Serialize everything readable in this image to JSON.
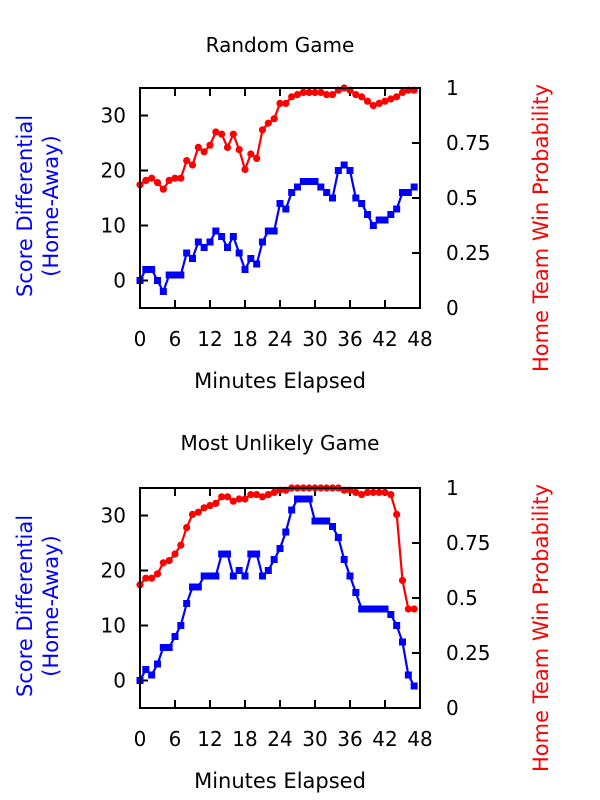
{
  "colors": {
    "score": "#0000ff",
    "prob": "#ff0000",
    "axis": "#000000"
  },
  "chart_data": [
    {
      "type": "line",
      "title": "Random Game",
      "xlabel": "Minutes Elapsed",
      "ylabel": [
        "Score Differential",
        "(Home-Away)"
      ],
      "y2label": "Home Team Win Probability",
      "xlim": [
        0,
        48
      ],
      "ylim": [
        -5,
        35
      ],
      "y2lim": [
        0,
        1
      ],
      "xticks": [
        "0",
        "6",
        "12",
        "18",
        "24",
        "30",
        "36",
        "42",
        "48"
      ],
      "yticks": [
        "0",
        "10",
        "20",
        "30"
      ],
      "y2ticks": [
        "0",
        "0.25",
        "0.5",
        "0.75",
        "1"
      ],
      "series": [
        {
          "axis": "left",
          "color": "#0000ff",
          "marker": "square",
          "x": [
            0,
            1,
            2,
            3,
            4,
            5,
            6,
            7,
            8,
            9,
            10,
            11,
            12,
            13,
            14,
            15,
            16,
            17,
            18,
            19,
            20,
            21,
            22,
            23,
            24,
            25,
            26,
            27,
            28,
            29,
            30,
            31,
            32,
            33,
            34,
            35,
            36,
            37,
            38,
            39,
            40,
            41,
            42,
            43,
            44,
            45,
            46,
            47
          ],
          "y": [
            0,
            2,
            2,
            0,
            -2,
            1,
            1,
            1,
            5,
            4,
            7,
            6,
            7,
            9,
            8,
            6,
            8,
            5,
            2,
            4,
            3,
            7,
            9,
            9,
            14,
            13,
            16,
            17,
            18,
            18,
            18,
            17,
            16,
            15,
            20,
            21,
            20,
            15,
            14,
            12,
            10,
            11,
            11,
            12,
            13,
            16,
            16,
            17
          ]
        },
        {
          "axis": "right",
          "color": "#ff0000",
          "marker": "circle",
          "x": [
            0,
            1,
            2,
            3,
            4,
            5,
            6,
            7,
            8,
            9,
            10,
            11,
            12,
            13,
            14,
            15,
            16,
            17,
            18,
            19,
            20,
            21,
            22,
            23,
            24,
            25,
            26,
            27,
            28,
            29,
            30,
            31,
            32,
            33,
            34,
            35,
            36,
            37,
            38,
            39,
            40,
            41,
            42,
            43,
            44,
            45,
            46,
            47
          ],
          "y": [
            0.56,
            0.58,
            0.59,
            0.57,
            0.54,
            0.58,
            0.59,
            0.59,
            0.67,
            0.65,
            0.73,
            0.71,
            0.74,
            0.8,
            0.79,
            0.73,
            0.79,
            0.72,
            0.63,
            0.7,
            0.68,
            0.81,
            0.84,
            0.86,
            0.93,
            0.93,
            0.96,
            0.97,
            0.98,
            0.98,
            0.98,
            0.98,
            0.97,
            0.97,
            0.99,
            1.0,
            0.99,
            0.97,
            0.96,
            0.94,
            0.92,
            0.93,
            0.94,
            0.95,
            0.96,
            0.98,
            0.99,
            0.99
          ]
        }
      ]
    },
    {
      "type": "line",
      "title": "Most Unlikely Game",
      "xlabel": "Minutes Elapsed",
      "ylabel": [
        "Score Differential",
        "(Home-Away)"
      ],
      "y2label": "Home Team Win Probability",
      "xlim": [
        0,
        48
      ],
      "ylim": [
        -5,
        35
      ],
      "y2lim": [
        0,
        1
      ],
      "xticks": [
        "0",
        "6",
        "12",
        "18",
        "24",
        "30",
        "36",
        "42",
        "48"
      ],
      "yticks": [
        "0",
        "10",
        "20",
        "30"
      ],
      "y2ticks": [
        "0",
        "0.25",
        "0.5",
        "0.75",
        "1"
      ],
      "series": [
        {
          "axis": "left",
          "color": "#0000ff",
          "marker": "square",
          "x": [
            0,
            1,
            2,
            3,
            4,
            5,
            6,
            7,
            8,
            9,
            10,
            11,
            12,
            13,
            14,
            15,
            16,
            17,
            18,
            19,
            20,
            21,
            22,
            23,
            24,
            25,
            26,
            27,
            28,
            29,
            30,
            31,
            32,
            33,
            34,
            35,
            36,
            37,
            38,
            39,
            40,
            41,
            42,
            43,
            44,
            45,
            46,
            47
          ],
          "y": [
            0,
            2,
            1,
            3,
            6,
            6,
            8,
            10,
            14,
            17,
            17,
            19,
            19,
            19,
            23,
            23,
            19,
            20,
            19,
            23,
            23,
            19,
            20,
            22,
            24,
            27,
            31,
            33,
            33,
            33,
            29,
            29,
            29,
            28,
            26,
            22,
            19,
            16,
            13,
            13,
            13,
            13,
            13,
            12,
            10,
            7,
            1,
            -1
          ]
        },
        {
          "axis": "right",
          "color": "#ff0000",
          "marker": "circle",
          "x": [
            0,
            1,
            2,
            3,
            4,
            5,
            6,
            7,
            8,
            9,
            10,
            11,
            12,
            13,
            14,
            15,
            16,
            17,
            18,
            19,
            20,
            21,
            22,
            23,
            24,
            25,
            26,
            27,
            28,
            29,
            30,
            31,
            32,
            33,
            34,
            35,
            36,
            37,
            38,
            39,
            40,
            41,
            42,
            43,
            44,
            45,
            46,
            47
          ],
          "y": [
            0.56,
            0.59,
            0.59,
            0.61,
            0.66,
            0.67,
            0.7,
            0.74,
            0.82,
            0.88,
            0.89,
            0.91,
            0.92,
            0.93,
            0.96,
            0.96,
            0.94,
            0.95,
            0.95,
            0.97,
            0.97,
            0.96,
            0.97,
            0.98,
            0.99,
            0.99,
            1.0,
            1.0,
            1.0,
            1.0,
            1.0,
            1.0,
            1.0,
            1.0,
            1.0,
            0.99,
            0.99,
            0.98,
            0.97,
            0.98,
            0.98,
            0.98,
            0.98,
            0.97,
            0.88,
            0.58,
            0.45,
            0.45
          ]
        }
      ]
    }
  ]
}
